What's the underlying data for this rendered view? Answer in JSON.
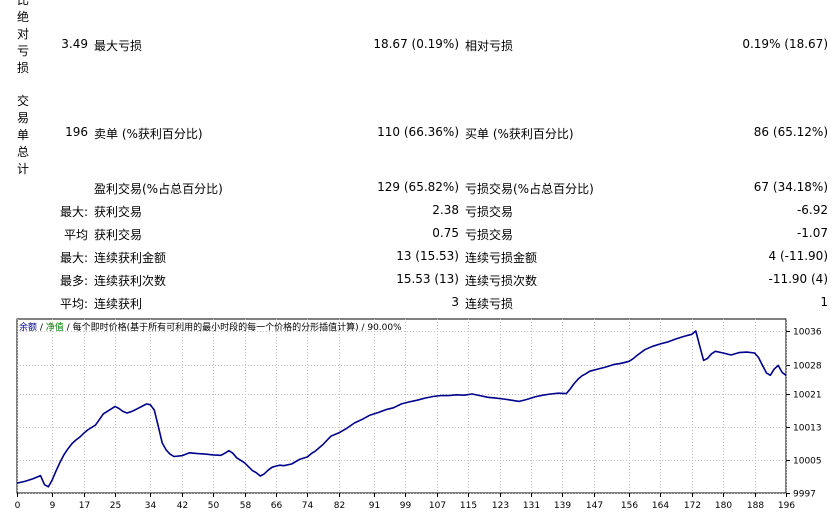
{
  "report": {
    "top_fragment": "比",
    "group_drawdown_label": "绝对亏损",
    "group_trades_label": "交易单总计",
    "drawdown_row": {
      "abs_value": "3.49",
      "max_label": "最大亏损",
      "max_value": "18.67 (0.19%)",
      "rel_label": "相对亏损",
      "rel_value": "0.19% (18.67)"
    },
    "trades_row": {
      "total_value": "196",
      "sell_label": "卖单 (%获利百分比)",
      "sell_value": "110 (66.36%)",
      "buy_label": "买单 (%获利百分比)",
      "buy_value": "86 (65.12%)"
    },
    "profit_row": {
      "win_label": "盈利交易(%占总百分比)",
      "win_value": "129 (65.82%)",
      "loss_label": "亏损交易(%占总百分比)",
      "loss_value": "67 (34.18%)"
    },
    "rows": [
      {
        "prefix": "最大:",
        "label_a": "获利交易",
        "value_a": "2.38",
        "label_b": "亏损交易",
        "value_b": "-6.92"
      },
      {
        "prefix": "平均",
        "label_a": "获利交易",
        "value_a": "0.75",
        "label_b": "亏损交易",
        "value_b": "-1.07"
      },
      {
        "prefix": "最大:",
        "label_a": "连续获利金额",
        "value_a": "13 (15.53)",
        "label_b": "连续亏损金额",
        "value_b": "4 (-11.90)"
      },
      {
        "prefix": "最多:",
        "label_a": "连续获利次数",
        "value_a": "15.53 (13)",
        "label_b": "连续亏损次数",
        "value_b": "-11.90 (4)"
      },
      {
        "prefix": "平均:",
        "label_a": "连续获利",
        "value_a": "3",
        "label_b": "连续亏损",
        "value_b": "1"
      }
    ]
  },
  "chart_legend": {
    "balance": "余额",
    "sep1": " / ",
    "equity": "净值",
    "sep2": " / ",
    "model": "每个即时价格(基于所有可利用的最小时段的每一个价格的分形插值计算)",
    "sep3": " / ",
    "quality": "90.00%"
  },
  "colors": {
    "line": "#00008b",
    "legend_balance": "#00008b",
    "legend_equity": "#008000",
    "grid": "#c0c0c0"
  },
  "chart_data": {
    "type": "line",
    "title": "",
    "xlabel": "",
    "ylabel": "",
    "x_ticks": [
      0,
      9,
      17,
      25,
      34,
      42,
      50,
      58,
      66,
      74,
      82,
      91,
      99,
      107,
      115,
      123,
      131,
      139,
      147,
      156,
      164,
      172,
      180,
      188,
      196
    ],
    "y_ticks": [
      9997,
      10005,
      10013,
      10021,
      10028,
      10036
    ],
    "xlim": [
      0,
      196
    ],
    "ylim": [
      9997,
      10039
    ],
    "grid": true,
    "series": [
      {
        "x": [
          0,
          2,
          4,
          6,
          7,
          8,
          9,
          10,
          11,
          12,
          13,
          14,
          15,
          16,
          17,
          18,
          20,
          22,
          24,
          25,
          26,
          27,
          28,
          29,
          30,
          31,
          32,
          33,
          34,
          35,
          36,
          37,
          38,
          39,
          40,
          42,
          44,
          46,
          48,
          50,
          52,
          53,
          54,
          55,
          56,
          58,
          60,
          61,
          62,
          63,
          64,
          65,
          66,
          67,
          68,
          70,
          72,
          74,
          75,
          76,
          78,
          80,
          82,
          84,
          86,
          88,
          90,
          92,
          94,
          96,
          98,
          100,
          102,
          104,
          106,
          108,
          110,
          112,
          114,
          116,
          118,
          120,
          122,
          124,
          126,
          128,
          130,
          132,
          134,
          136,
          138,
          140,
          141,
          142,
          143,
          144,
          145,
          146,
          148,
          150,
          152,
          154,
          156,
          157,
          158,
          159,
          160,
          162,
          164,
          166,
          168,
          170,
          172,
          173,
          174,
          175,
          176,
          177,
          178,
          180,
          182,
          184,
          186,
          188,
          189,
          190,
          191,
          192,
          193,
          194,
          195,
          196
        ],
        "y": [
          9999.4,
          9999.8,
          10000.4,
          10001.2,
          9999.0,
          9998.5,
          10000.2,
          10002.4,
          10004.5,
          10006.3,
          10007.7,
          10008.9,
          10009.8,
          10010.5,
          10011.4,
          10012.2,
          10013.4,
          10016.1,
          10017.3,
          10017.9,
          10017.4,
          10016.7,
          10016.3,
          10016.6,
          10017.0,
          10017.5,
          10018.0,
          10018.5,
          10018.3,
          10017.0,
          10013.2,
          10009.1,
          10007.4,
          10006.4,
          10005.8,
          10006.0,
          10006.7,
          10006.5,
          10006.4,
          10006.2,
          10006.1,
          10006.6,
          10007.2,
          10006.6,
          10005.5,
          10004.3,
          10002.4,
          10001.9,
          10001.1,
          10001.6,
          10002.5,
          10003.2,
          10003.5,
          10003.7,
          10003.6,
          10004.0,
          10005.1,
          10005.7,
          10006.5,
          10007.1,
          10008.7,
          10010.7,
          10011.5,
          10012.6,
          10013.9,
          10014.8,
          10015.8,
          10016.4,
          10017.1,
          10017.6,
          10018.5,
          10019.0,
          10019.4,
          10019.9,
          10020.3,
          10020.5,
          10020.5,
          10020.7,
          10020.6,
          10020.9,
          10020.5,
          10020.1,
          10019.9,
          10019.7,
          10019.4,
          10019.1,
          10019.6,
          10020.2,
          10020.6,
          10020.9,
          10021.1,
          10021.0,
          10022.1,
          10023.4,
          10024.5,
          10025.3,
          10025.8,
          10026.4,
          10026.9,
          10027.4,
          10028.0,
          10028.3,
          10028.8,
          10029.4,
          10030.2,
          10030.9,
          10031.6,
          10032.4,
          10033.0,
          10033.5,
          10034.2,
          10034.8,
          10035.3,
          10036.1,
          10032.5,
          10029.0,
          10029.5,
          10030.6,
          10031.2,
          10030.8,
          10030.3,
          10030.9,
          10031.0,
          10030.8,
          10029.7,
          10027.8,
          10026.0,
          10025.4,
          10026.9,
          10027.8,
          10026.1,
          10025.4
        ]
      }
    ]
  }
}
